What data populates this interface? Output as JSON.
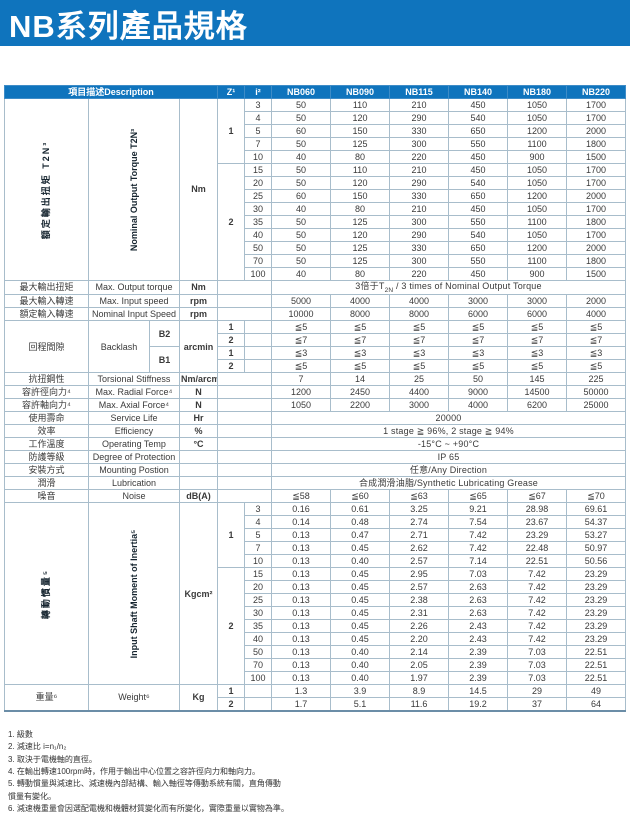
{
  "page": {
    "title": "NB系列產品規格"
  },
  "colors": {
    "brand_blue": "#0f74bd",
    "band_blue": "#daecf8",
    "label_blue": "#d3e6f3"
  },
  "table": {
    "header": {
      "description": "項目描述Description",
      "z": "Z¹",
      "i": "i²",
      "models": [
        "NB060",
        "NB090",
        "NB115",
        "NB140",
        "NB180",
        "NB220"
      ]
    },
    "torque": {
      "zh": "額定輸出扭矩  T2N³",
      "en": "Nominal Output Torque T2N³",
      "unit": "Nm",
      "groups": [
        {
          "z": "1",
          "rows": [
            {
              "i": "3",
              "values": [
                "50",
                "110",
                "210",
                "450",
                "1050",
                "1700"
              ]
            },
            {
              "i": "4",
              "values": [
                "50",
                "120",
                "290",
                "540",
                "1050",
                "1700"
              ]
            },
            {
              "i": "5",
              "values": [
                "60",
                "150",
                "330",
                "650",
                "1200",
                "2000"
              ]
            },
            {
              "i": "7",
              "values": [
                "50",
                "125",
                "300",
                "550",
                "1100",
                "1800"
              ]
            },
            {
              "i": "10",
              "values": [
                "40",
                "80",
                "220",
                "450",
                "900",
                "1500"
              ]
            }
          ]
        },
        {
          "z": "2",
          "rows": [
            {
              "i": "15",
              "values": [
                "50",
                "110",
                "210",
                "450",
                "1050",
                "1700"
              ]
            },
            {
              "i": "20",
              "values": [
                "50",
                "120",
                "290",
                "540",
                "1050",
                "1700"
              ]
            },
            {
              "i": "25",
              "values": [
                "60",
                "150",
                "330",
                "650",
                "1200",
                "2000"
              ]
            },
            {
              "i": "30",
              "values": [
                "40",
                "80",
                "210",
                "450",
                "1050",
                "1700"
              ]
            },
            {
              "i": "35",
              "values": [
                "50",
                "125",
                "300",
                "550",
                "1100",
                "1800"
              ]
            },
            {
              "i": "40",
              "values": [
                "50",
                "120",
                "290",
                "540",
                "1050",
                "1700"
              ]
            },
            {
              "i": "50",
              "values": [
                "50",
                "125",
                "330",
                "650",
                "1200",
                "2000"
              ]
            },
            {
              "i": "70",
              "values": [
                "50",
                "125",
                "300",
                "550",
                "1100",
                "1800"
              ]
            },
            {
              "i": "100",
              "values": [
                "40",
                "80",
                "220",
                "450",
                "900",
                "1500"
              ]
            }
          ]
        }
      ]
    },
    "specs1": [
      {
        "zh": "最大輸出扭矩",
        "en": "Max. Output torque",
        "unit": "Nm",
        "merged_parts": [
          {
            "text": "3倍于T"
          },
          {
            "text": "2N",
            "sub": true
          },
          {
            "text": " / 3 times of Nominal Output Torque"
          }
        ]
      },
      {
        "zh": "最大輸入轉速",
        "en": "Max. Input speed",
        "unit": "rpm",
        "values": [
          "5000",
          "4000",
          "4000",
          "3000",
          "3000",
          "2000"
        ]
      },
      {
        "zh": "額定輸入轉速",
        "en": "Nominal Input Speed",
        "unit": "rpm",
        "values": [
          "10000",
          "8000",
          "8000",
          "6000",
          "6000",
          "4000"
        ]
      }
    ],
    "backlash": {
      "zh": "回程間隙",
      "en": "Backlash",
      "unit": "arcmin",
      "subgroups": [
        {
          "label": "B2",
          "rows": [
            {
              "z": "1",
              "value": "≦5"
            },
            {
              "z": "2",
              "value": "≦7"
            }
          ]
        },
        {
          "label": "B1",
          "rows": [
            {
              "z": "1",
              "value": "≦3"
            },
            {
              "z": "2",
              "value": "≦5"
            }
          ]
        }
      ]
    },
    "specs2": [
      {
        "zh": "抗扭鋼性",
        "en": "Torsional Stiffness",
        "unit": "Nm/arcmin",
        "values": [
          "7",
          "14",
          "25",
          "50",
          "145",
          "225"
        ]
      },
      {
        "zh": "容許徑向力⁴",
        "en": "Max. Radial Force⁴",
        "unit": "N",
        "values": [
          "1200",
          "2450",
          "4400",
          "9000",
          "14500",
          "50000"
        ]
      },
      {
        "zh": "容許軸向力⁴",
        "en": "Max. Axial Force⁴",
        "unit": "N",
        "values": [
          "1050",
          "2200",
          "3000",
          "4000",
          "6200",
          "25000"
        ]
      },
      {
        "zh": "使用壽命",
        "en": "Service Life",
        "unit": "Hr",
        "merged": "20000"
      },
      {
        "zh": "效率",
        "en": "Efficiency",
        "unit": "%",
        "merged": "1 stage ≧ 96%,  2 stage ≧ 94%"
      },
      {
        "zh": "工作溫度",
        "en": "Operating Temp",
        "unit": "°C",
        "merged": "-15°C ~ +90°C"
      },
      {
        "zh": "防護等級",
        "en": "Degree of Protection",
        "unit": "",
        "merged": "IP 65"
      },
      {
        "zh": "安裝方式",
        "en": "Mounting Postion",
        "unit": "",
        "merged": "任意/Any Direction"
      },
      {
        "zh": "潤滑",
        "en": "Lubrication",
        "unit": "",
        "merged": "合成潤滑油脂/Synthetic Lubricating Grease"
      },
      {
        "zh": "噪音",
        "en": "Noise",
        "unit": "dB(A)",
        "values": [
          "≦58",
          "≦60",
          "≦63",
          "≦65",
          "≦67",
          "≦70"
        ]
      }
    ],
    "inertia": {
      "zh": "轉動慣量⁵",
      "en": "Input Shaft Moment of Inertia⁵",
      "unit": "Kgcm²",
      "groups": [
        {
          "z": "1",
          "rows": [
            {
              "i": "3",
              "values": [
                "0.16",
                "0.61",
                "3.25",
                "9.21",
                "28.98",
                "69.61"
              ]
            },
            {
              "i": "4",
              "values": [
                "0.14",
                "0.48",
                "2.74",
                "7.54",
                "23.67",
                "54.37"
              ]
            },
            {
              "i": "5",
              "values": [
                "0.13",
                "0.47",
                "2.71",
                "7.42",
                "23.29",
                "53.27"
              ]
            },
            {
              "i": "7",
              "values": [
                "0.13",
                "0.45",
                "2.62",
                "7.42",
                "22.48",
                "50.97"
              ]
            },
            {
              "i": "10",
              "values": [
                "0.13",
                "0.40",
                "2.57",
                "7.14",
                "22.51",
                "50.56"
              ]
            }
          ]
        },
        {
          "z": "2",
          "rows": [
            {
              "i": "15",
              "values": [
                "0.13",
                "0.45",
                "2.95",
                "7.03",
                "7.42",
                "23.29"
              ]
            },
            {
              "i": "20",
              "values": [
                "0.13",
                "0.45",
                "2.57",
                "2.63",
                "7.42",
                "23.29"
              ]
            },
            {
              "i": "25",
              "values": [
                "0.13",
                "0.45",
                "2.38",
                "2.63",
                "7.42",
                "23.29"
              ]
            },
            {
              "i": "30",
              "values": [
                "0.13",
                "0.45",
                "2.31",
                "2.63",
                "7.42",
                "23.29"
              ]
            },
            {
              "i": "35",
              "values": [
                "0.13",
                "0.45",
                "2.26",
                "2.43",
                "7.42",
                "23.29"
              ]
            },
            {
              "i": "40",
              "values": [
                "0.13",
                "0.45",
                "2.20",
                "2.43",
                "7.42",
                "23.29"
              ]
            },
            {
              "i": "50",
              "values": [
                "0.13",
                "0.40",
                "2.14",
                "2.39",
                "7.03",
                "22.51"
              ]
            },
            {
              "i": "70",
              "values": [
                "0.13",
                "0.40",
                "2.05",
                "2.39",
                "7.03",
                "22.51"
              ]
            },
            {
              "i": "100",
              "values": [
                "0.13",
                "0.40",
                "1.97",
                "2.39",
                "7.03",
                "22.51"
              ]
            }
          ]
        }
      ]
    },
    "weight": {
      "zh": "重量⁶",
      "en": "Weight⁶",
      "unit": "Kg",
      "rows": [
        {
          "z": "1",
          "values": [
            "1.3",
            "3.9",
            "8.9",
            "14.5",
            "29",
            "49"
          ]
        },
        {
          "z": "2",
          "values": [
            "1.7",
            "5.1",
            "11.6",
            "19.2",
            "37",
            "64"
          ]
        }
      ]
    }
  },
  "footnotes": [
    "1. 級數",
    "2. 減速比  i=n₁/n₂",
    "3. 取決于電機軸的直徑。",
    "4. 在輸出轉速100rpm時，作用于輸出中心位置之容許徑向力和軸向力。",
    "5. 轉動慣量與減速比、減速機內部結構、輸入軸徑等傳動系統有關，直角傳動\n    慣量有變化。",
    "6. 減速機重量會因選配電機和機體材質變化而有所變化，實際重量以實物為準。"
  ]
}
